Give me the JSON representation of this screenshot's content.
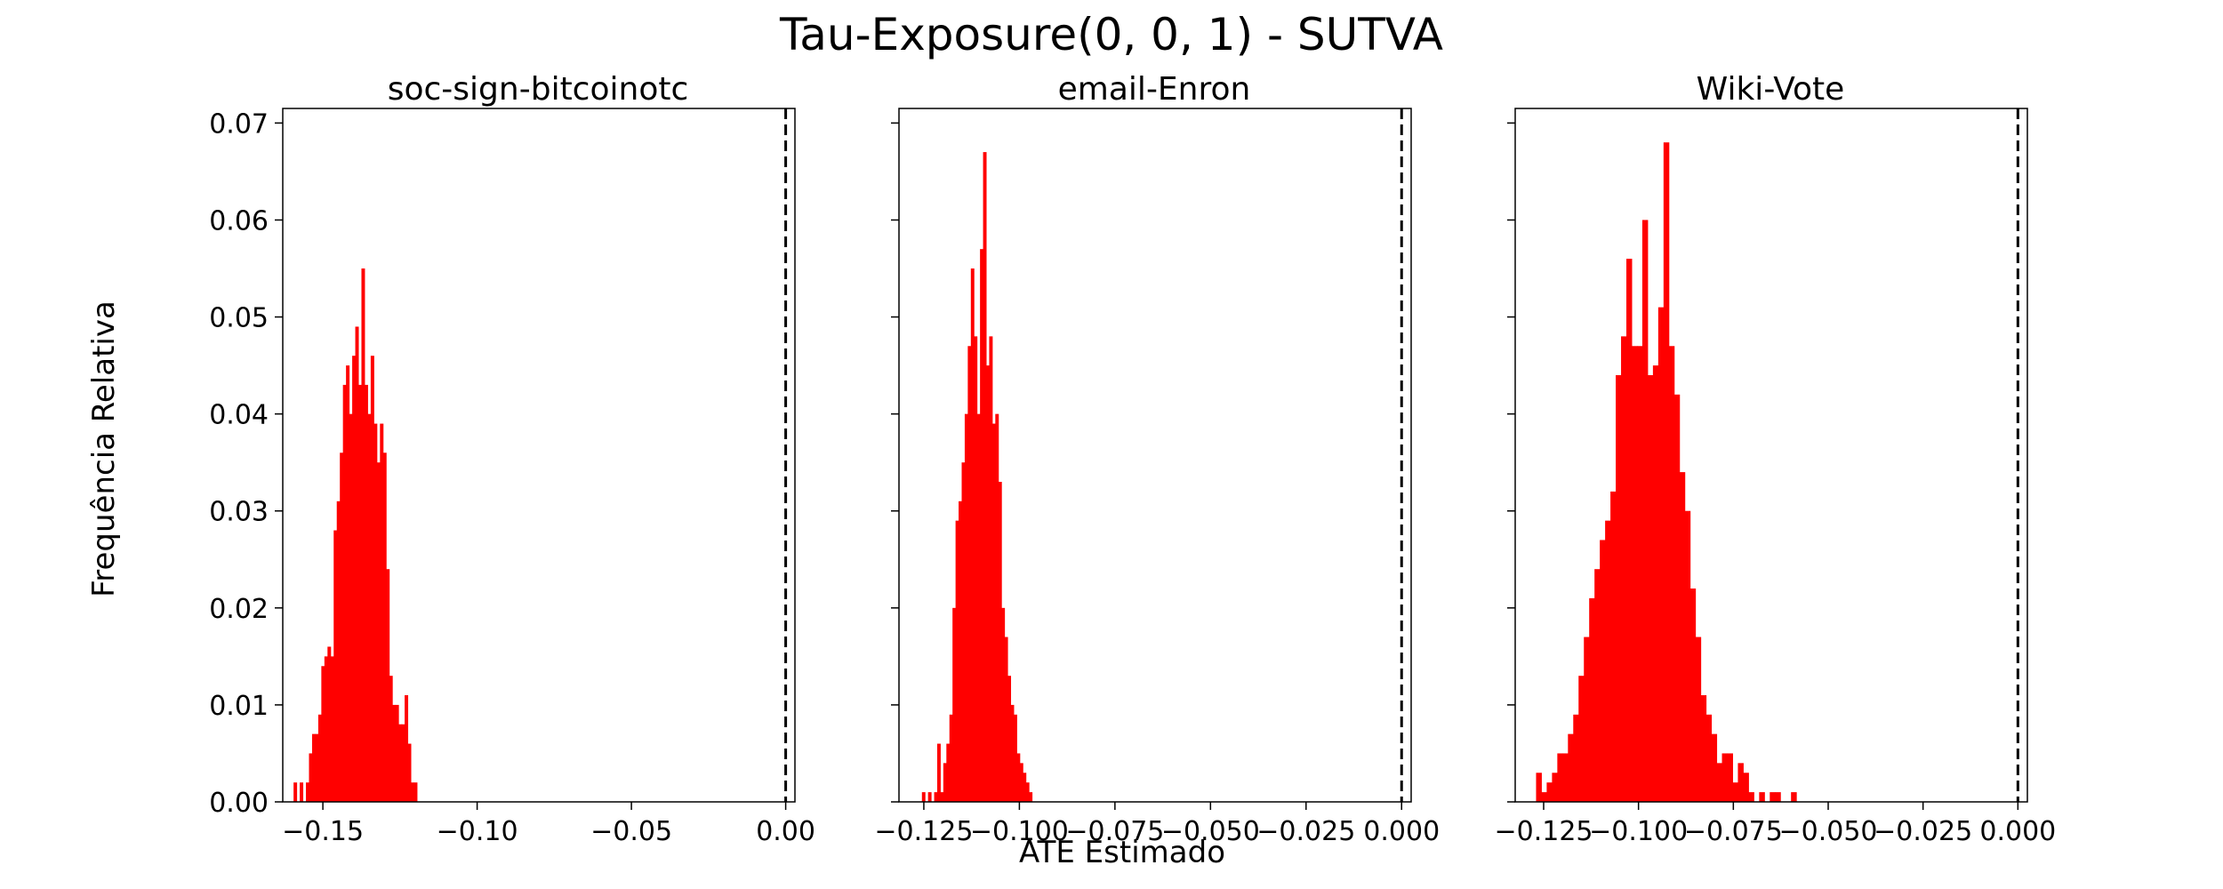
{
  "figure": {
    "title": "Tau-Exposure(0, 0, 1) - SUTVA",
    "ylabel": "Frequência Relativa",
    "xlabel": "ATE Estimado",
    "bar_color": "#ff0000",
    "reference_line_color": "#000000"
  },
  "chart_data": [
    {
      "type": "bar",
      "title": "soc-sign-bitcoinotc",
      "xlim": [
        -0.163,
        0.003
      ],
      "ylim": [
        0,
        0.0715
      ],
      "xticks": [
        -0.15,
        -0.1,
        -0.05,
        0.0
      ],
      "xtick_labels": [
        "−0.15",
        "−0.10",
        "−0.05",
        "0.00"
      ],
      "yticks": [
        0,
        0.01,
        0.02,
        0.03,
        0.04,
        0.05,
        0.06,
        0.07
      ],
      "ytick_labels": [
        "0.00",
        "0.01",
        "0.02",
        "0.03",
        "0.04",
        "0.05",
        "0.06",
        "0.07"
      ],
      "show_ytick_labels": true,
      "reference_line_x": 0.0,
      "bin_start": -0.1595,
      "bin_width": 0.001,
      "values": [
        0.002,
        0,
        0.002,
        0,
        0.002,
        0.005,
        0.007,
        0.007,
        0.009,
        0.014,
        0.015,
        0.016,
        0.015,
        0.028,
        0.031,
        0.036,
        0.043,
        0.045,
        0.04,
        0.046,
        0.049,
        0.043,
        0.055,
        0.043,
        0.04,
        0.046,
        0.039,
        0.035,
        0.039,
        0.036,
        0.024,
        0.013,
        0.01,
        0.01,
        0.008,
        0.008,
        0.011,
        0.006,
        0.002,
        0.002
      ]
    },
    {
      "type": "bar",
      "title": "email-Enron",
      "xlim": [
        -0.1315,
        0.0025
      ],
      "ylim": [
        0,
        0.0715
      ],
      "xticks": [
        -0.125,
        -0.1,
        -0.075,
        -0.05,
        -0.025,
        0.0
      ],
      "xtick_labels": [
        "−0.125",
        "−0.100",
        "−0.075",
        "−0.050",
        "−0.025",
        "0.000"
      ],
      "yticks": [
        0,
        0.01,
        0.02,
        0.03,
        0.04,
        0.05,
        0.06,
        0.07
      ],
      "show_ytick_labels": false,
      "reference_line_x": 0.0,
      "bin_start": -0.1255,
      "bin_width": 0.0008,
      "values": [
        0.001,
        0,
        0.001,
        0,
        0.001,
        0.006,
        0.001,
        0.004,
        0.006,
        0.009,
        0.02,
        0.029,
        0.031,
        0.035,
        0.04,
        0.047,
        0.055,
        0.048,
        0.04,
        0.057,
        0.067,
        0.045,
        0.048,
        0.039,
        0.04,
        0.033,
        0.02,
        0.017,
        0.013,
        0.01,
        0.009,
        0.005,
        0.004,
        0.003,
        0.002,
        0.001
      ]
    },
    {
      "type": "bar",
      "title": "Wiki-Vote",
      "xlim": [
        -0.1325,
        0.0025
      ],
      "ylim": [
        0,
        0.0715
      ],
      "xticks": [
        -0.125,
        -0.1,
        -0.075,
        -0.05,
        -0.025,
        0.0
      ],
      "xtick_labels": [
        "−0.125",
        "−0.100",
        "−0.075",
        "−0.050",
        "−0.025",
        "0.000"
      ],
      "yticks": [
        0,
        0.01,
        0.02,
        0.03,
        0.04,
        0.05,
        0.06,
        0.07
      ],
      "show_ytick_labels": false,
      "reference_line_x": 0.0,
      "bin_start": -0.127,
      "bin_width": 0.0014,
      "values": [
        0.003,
        0.001,
        0.002,
        0.003,
        0.005,
        0.005,
        0.007,
        0.009,
        0.013,
        0.017,
        0.021,
        0.024,
        0.027,
        0.029,
        0.032,
        0.044,
        0.048,
        0.056,
        0.047,
        0.047,
        0.06,
        0.044,
        0.045,
        0.051,
        0.068,
        0.047,
        0.042,
        0.034,
        0.03,
        0.022,
        0.017,
        0.011,
        0.009,
        0.007,
        0.004,
        0.005,
        0.005,
        0.002,
        0.004,
        0.003,
        0.001,
        0,
        0.001,
        0,
        0.001,
        0.001,
        0,
        0,
        0.001
      ]
    }
  ]
}
